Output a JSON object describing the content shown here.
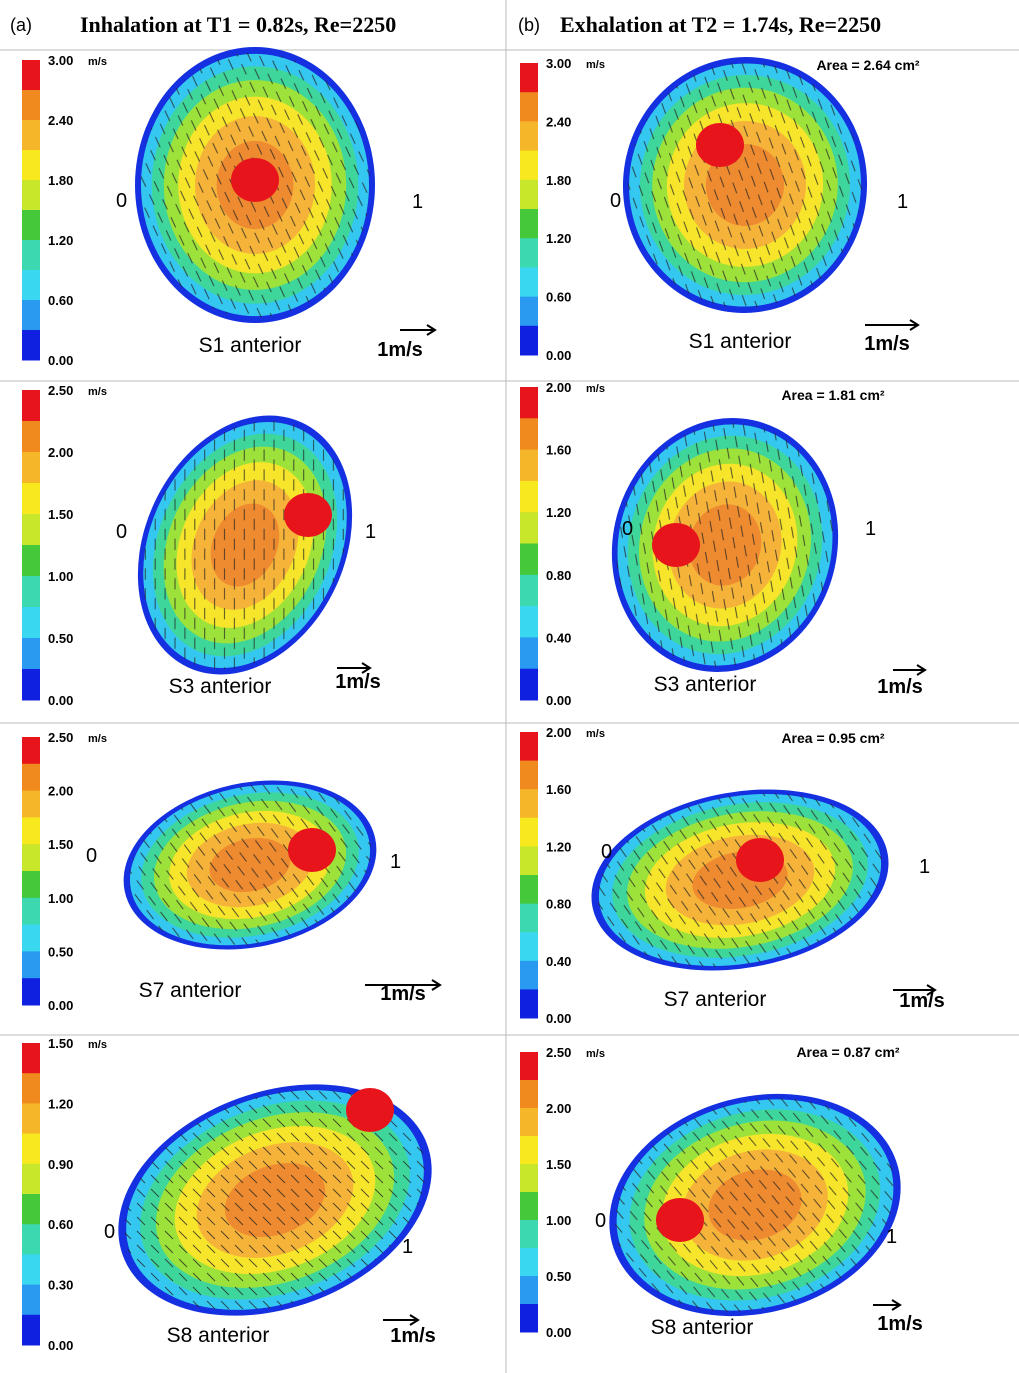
{
  "header": {
    "a_label": "(a)",
    "a_title": "Inhalation at T1 = 0.82s, Re=2250",
    "b_label": "(b)",
    "b_title": "Exhalation at T2 = 1.74s, Re=2250"
  },
  "panels": [
    {
      "unit": "m/s",
      "ticks": [
        "3.00",
        "2.40",
        "1.80",
        "1.20",
        "0.60",
        "0.00"
      ],
      "left": "0",
      "right": "1",
      "section": "S1 anterior",
      "scale": "1m/s"
    },
    {
      "unit": "m/s",
      "ticks": [
        "3.00",
        "2.40",
        "1.80",
        "1.20",
        "0.60",
        "0.00"
      ],
      "left": "0",
      "right": "1",
      "section": "S1 anterior",
      "scale": "1m/s",
      "area": "Area = 2.64 cm²"
    },
    {
      "unit": "m/s",
      "ticks": [
        "2.50",
        "2.00",
        "1.50",
        "1.00",
        "0.50",
        "0.00"
      ],
      "left": "0",
      "right": "1",
      "section": "S3  anterior",
      "scale": "1m/s"
    },
    {
      "unit": "m/s",
      "ticks": [
        "2.00",
        "1.60",
        "1.20",
        "0.80",
        "0.40",
        "0.00"
      ],
      "left": "0",
      "right": "1",
      "section": "S3  anterior",
      "scale": "1m/s",
      "area": "Area = 1.81 cm²"
    },
    {
      "unit": "m/s",
      "ticks": [
        "2.50",
        "2.00",
        "1.50",
        "1.00",
        "0.50",
        "0.00"
      ],
      "left": "0",
      "right": "1",
      "section": "S7  anterior",
      "scale": "1m/s"
    },
    {
      "unit": "m/s",
      "ticks": [
        "2.00",
        "1.60",
        "1.20",
        "0.80",
        "0.40",
        "0.00"
      ],
      "left": "0",
      "right": "1",
      "section": "S7  anterior",
      "scale": "1m/s",
      "area": "Area = 0.95 cm²"
    },
    {
      "unit": "m/s",
      "ticks": [
        "1.50",
        "1.20",
        "0.90",
        "0.60",
        "0.30",
        "0.00"
      ],
      "left": "0",
      "right": "1",
      "section": "S8  anterior",
      "scale": "1m/s"
    },
    {
      "unit": "m/s",
      "ticks": [
        "2.50",
        "2.00",
        "1.50",
        "1.00",
        "0.50",
        "0.00"
      ],
      "left": "0",
      "right": "1",
      "section": "S8  anterior",
      "scale": "1m/s",
      "area": "Area = 0.87 cm²"
    }
  ]
}
